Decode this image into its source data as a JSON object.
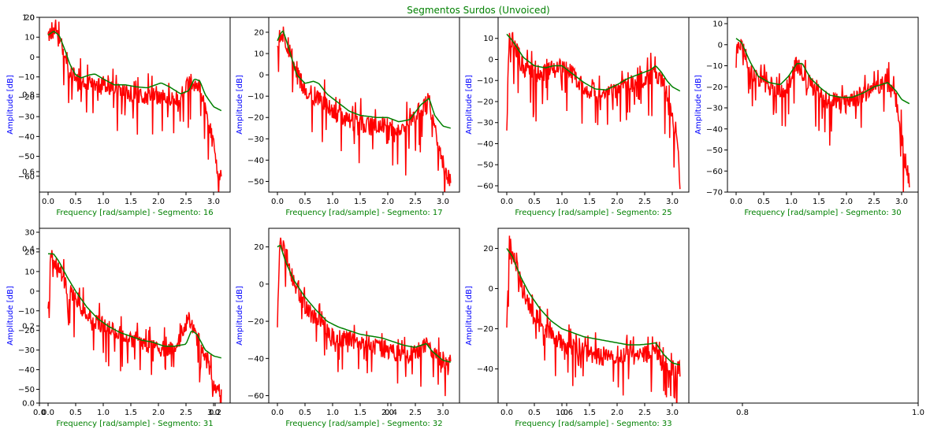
{
  "figure": {
    "title": "Segmentos Surdos (Unvoiced)",
    "title_color": "#008000",
    "background_axes": {
      "xticks": [
        "0.0",
        "0.2",
        "0.4",
        "0.6",
        "0.8",
        "1.0"
      ],
      "yticks": [
        "0.0",
        "0.2",
        "0.4",
        "0.6",
        "0.8",
        "1.0"
      ]
    }
  },
  "colors": {
    "spectrum": "#ff0000",
    "envelope": "#008000",
    "xlabel": "#008000",
    "ylabel": "#0000ff",
    "axes": "#000000"
  },
  "chart_data": [
    {
      "type": "line",
      "xlabel": "Frequency [rad/sample] - Segmento: 16",
      "ylabel": "Amplitude [dB]",
      "xlim": [
        -0.157,
        3.3
      ],
      "ylim": [
        -68,
        20
      ],
      "xticks": [
        0.0,
        0.5,
        1.0,
        1.5,
        2.0,
        2.5,
        3.0
      ],
      "yticks": [
        -60,
        -50,
        -40,
        -30,
        -20,
        -10,
        0,
        10,
        20
      ],
      "envelope": [
        [
          0.0,
          11
        ],
        [
          0.1,
          13
        ],
        [
          0.2,
          11
        ],
        [
          0.3,
          4
        ],
        [
          0.4,
          -4
        ],
        [
          0.5,
          -9
        ],
        [
          0.6,
          -10.5
        ],
        [
          0.75,
          -9
        ],
        [
          0.85,
          -8.5
        ],
        [
          1.0,
          -11
        ],
        [
          1.2,
          -14
        ],
        [
          1.4,
          -14
        ],
        [
          1.6,
          -15
        ],
        [
          1.8,
          -15.5
        ],
        [
          1.95,
          -14
        ],
        [
          2.05,
          -13
        ],
        [
          2.2,
          -15
        ],
        [
          2.4,
          -18.5
        ],
        [
          2.55,
          -17
        ],
        [
          2.65,
          -11
        ],
        [
          2.75,
          -12
        ],
        [
          2.85,
          -19
        ],
        [
          3.0,
          -25
        ],
        [
          3.14,
          -27
        ]
      ],
      "spectrum_trend": [
        [
          0.0,
          12
        ],
        [
          0.1,
          14
        ],
        [
          0.25,
          5
        ],
        [
          0.4,
          -8
        ],
        [
          0.6,
          -13
        ],
        [
          0.8,
          -14
        ],
        [
          1.0,
          -15
        ],
        [
          1.3,
          -18
        ],
        [
          1.6,
          -19
        ],
        [
          1.9,
          -20
        ],
        [
          2.1,
          -21
        ],
        [
          2.4,
          -20
        ],
        [
          2.6,
          -12
        ],
        [
          2.75,
          -16
        ],
        [
          2.9,
          -30
        ],
        [
          3.0,
          -45
        ],
        [
          3.1,
          -60
        ],
        [
          3.14,
          -57
        ]
      ]
    },
    {
      "type": "line",
      "xlabel": "Frequency [rad/sample] - Segmento: 17",
      "ylabel": "Amplitude [dB]",
      "xlim": [
        -0.157,
        3.3
      ],
      "ylim": [
        -55,
        27
      ],
      "xticks": [
        0.0,
        0.5,
        1.0,
        1.5,
        2.0,
        2.5,
        3.0
      ],
      "yticks": [
        -50,
        -40,
        -30,
        -20,
        -10,
        0,
        10,
        20
      ],
      "envelope": [
        [
          0.0,
          16
        ],
        [
          0.05,
          19
        ],
        [
          0.1,
          21
        ],
        [
          0.2,
          13
        ],
        [
          0.35,
          0
        ],
        [
          0.5,
          -4
        ],
        [
          0.65,
          -3
        ],
        [
          0.75,
          -4
        ],
        [
          0.9,
          -9
        ],
        [
          1.1,
          -13
        ],
        [
          1.3,
          -17
        ],
        [
          1.5,
          -19
        ],
        [
          1.8,
          -20
        ],
        [
          2.0,
          -20
        ],
        [
          2.2,
          -22
        ],
        [
          2.4,
          -21
        ],
        [
          2.6,
          -14
        ],
        [
          2.75,
          -11
        ],
        [
          2.85,
          -19
        ],
        [
          3.0,
          -24
        ],
        [
          3.14,
          -25
        ]
      ],
      "spectrum_trend": [
        [
          0.0,
          15
        ],
        [
          0.1,
          20
        ],
        [
          0.3,
          3
        ],
        [
          0.5,
          -7
        ],
        [
          0.8,
          -12
        ],
        [
          1.0,
          -17
        ],
        [
          1.3,
          -22
        ],
        [
          1.6,
          -24
        ],
        [
          2.0,
          -24
        ],
        [
          2.3,
          -26
        ],
        [
          2.6,
          -16
        ],
        [
          2.75,
          -13
        ],
        [
          2.9,
          -30
        ],
        [
          3.0,
          -42
        ],
        [
          3.14,
          -50
        ]
      ]
    },
    {
      "type": "line",
      "xlabel": "Frequency [rad/sample] - Segmento: 25",
      "ylabel": "Amplitude [dB]",
      "xlim": [
        -0.157,
        3.3
      ],
      "ylim": [
        -63,
        20
      ],
      "xticks": [
        0.0,
        0.5,
        1.0,
        1.5,
        2.0,
        2.5,
        3.0
      ],
      "yticks": [
        -60,
        -50,
        -40,
        -30,
        -20,
        -10,
        0,
        10
      ],
      "envelope": [
        [
          0.0,
          12
        ],
        [
          0.1,
          9
        ],
        [
          0.3,
          1
        ],
        [
          0.5,
          -3
        ],
        [
          0.7,
          -4
        ],
        [
          0.85,
          -3
        ],
        [
          1.0,
          -3
        ],
        [
          1.2,
          -7
        ],
        [
          1.4,
          -11
        ],
        [
          1.6,
          -14
        ],
        [
          1.8,
          -14.5
        ],
        [
          2.0,
          -12
        ],
        [
          2.2,
          -9
        ],
        [
          2.4,
          -7
        ],
        [
          2.6,
          -5
        ],
        [
          2.7,
          -3
        ],
        [
          2.8,
          -6
        ],
        [
          2.9,
          -10
        ],
        [
          3.0,
          -13
        ],
        [
          3.14,
          -15
        ]
      ],
      "spectrum_trend": [
        [
          0.0,
          -38
        ],
        [
          0.03,
          5
        ],
        [
          0.1,
          9
        ],
        [
          0.3,
          -4
        ],
        [
          0.6,
          -7
        ],
        [
          1.0,
          -3
        ],
        [
          1.3,
          -10
        ],
        [
          1.6,
          -17
        ],
        [
          2.0,
          -14
        ],
        [
          2.4,
          -10
        ],
        [
          2.7,
          -6
        ],
        [
          2.85,
          -12
        ],
        [
          3.0,
          -25
        ],
        [
          3.1,
          -45
        ],
        [
          3.14,
          -58
        ]
      ]
    },
    {
      "type": "line",
      "xlabel": "Frequency [rad/sample] - Segmento: 30",
      "ylabel": "Amplitude [dB]",
      "xlim": [
        -0.157,
        3.3
      ],
      "ylim": [
        -70,
        13
      ],
      "xticks": [
        0.0,
        0.5,
        1.0,
        1.5,
        2.0,
        2.5,
        3.0
      ],
      "yticks": [
        -70,
        -60,
        -50,
        -40,
        -30,
        -20,
        -10,
        0,
        10
      ],
      "envelope": [
        [
          0.0,
          3
        ],
        [
          0.1,
          1
        ],
        [
          0.25,
          -8
        ],
        [
          0.4,
          -15
        ],
        [
          0.6,
          -18
        ],
        [
          0.8,
          -19
        ],
        [
          0.95,
          -15
        ],
        [
          1.1,
          -9
        ],
        [
          1.2,
          -9
        ],
        [
          1.35,
          -16
        ],
        [
          1.55,
          -21
        ],
        [
          1.7,
          -24
        ],
        [
          1.9,
          -25
        ],
        [
          2.1,
          -25
        ],
        [
          2.3,
          -23
        ],
        [
          2.5,
          -20
        ],
        [
          2.75,
          -18
        ],
        [
          2.9,
          -22
        ],
        [
          3.0,
          -26
        ],
        [
          3.14,
          -28
        ]
      ],
      "spectrum_trend": [
        [
          0.0,
          -8
        ],
        [
          0.05,
          3
        ],
        [
          0.15,
          -3
        ],
        [
          0.3,
          -14
        ],
        [
          0.6,
          -20
        ],
        [
          0.9,
          -22
        ],
        [
          1.1,
          -9
        ],
        [
          1.3,
          -18
        ],
        [
          1.6,
          -26
        ],
        [
          2.0,
          -28
        ],
        [
          2.4,
          -22
        ],
        [
          2.7,
          -17
        ],
        [
          2.9,
          -26
        ],
        [
          3.0,
          -45
        ],
        [
          3.1,
          -60
        ],
        [
          3.14,
          -65
        ]
      ]
    },
    {
      "type": "line",
      "xlabel": "Frequency [rad/sample] - Segmento: 31",
      "ylabel": "Amplitude [dB]",
      "xlim": [
        -0.157,
        3.3
      ],
      "ylim": [
        -57,
        32
      ],
      "xticks": [
        0.0,
        0.5,
        1.0,
        1.5,
        2.0,
        2.5,
        3.0
      ],
      "yticks": [
        -50,
        -40,
        -30,
        -20,
        -10,
        0,
        10,
        20,
        30
      ],
      "envelope": [
        [
          0.0,
          19
        ],
        [
          0.1,
          19
        ],
        [
          0.2,
          15
        ],
        [
          0.35,
          7
        ],
        [
          0.5,
          0
        ],
        [
          0.7,
          -8
        ],
        [
          0.9,
          -14
        ],
        [
          1.1,
          -18
        ],
        [
          1.3,
          -21
        ],
        [
          1.5,
          -23
        ],
        [
          1.7,
          -25
        ],
        [
          1.9,
          -26
        ],
        [
          2.1,
          -28
        ],
        [
          2.3,
          -28
        ],
        [
          2.5,
          -27
        ],
        [
          2.6,
          -20
        ],
        [
          2.7,
          -22
        ],
        [
          2.85,
          -30
        ],
        [
          3.0,
          -33
        ],
        [
          3.14,
          -34
        ]
      ],
      "spectrum_trend": [
        [
          0.0,
          -8
        ],
        [
          0.05,
          20
        ],
        [
          0.15,
          12
        ],
        [
          0.3,
          4
        ],
        [
          0.5,
          -5
        ],
        [
          0.7,
          -12
        ],
        [
          1.0,
          -18
        ],
        [
          1.3,
          -22
        ],
        [
          1.6,
          -26
        ],
        [
          2.0,
          -30
        ],
        [
          2.3,
          -29
        ],
        [
          2.55,
          -14
        ],
        [
          2.7,
          -24
        ],
        [
          2.9,
          -35
        ],
        [
          3.0,
          -48
        ],
        [
          3.14,
          -52
        ]
      ]
    },
    {
      "type": "line",
      "xlabel": "Frequency [rad/sample] - Segmento: 32",
      "ylabel": "Amplitude [dB]",
      "xlim": [
        -0.157,
        3.3
      ],
      "ylim": [
        -64,
        30
      ],
      "xticks": [
        0.0,
        0.5,
        1.0,
        1.5,
        2.0,
        2.5,
        3.0
      ],
      "yticks": [
        -60,
        -40,
        -20,
        0,
        20
      ],
      "envelope": [
        [
          0.0,
          20
        ],
        [
          0.05,
          21
        ],
        [
          0.15,
          12
        ],
        [
          0.3,
          2
        ],
        [
          0.5,
          -7
        ],
        [
          0.7,
          -14
        ],
        [
          0.9,
          -20
        ],
        [
          1.1,
          -23
        ],
        [
          1.3,
          -25
        ],
        [
          1.5,
          -27
        ],
        [
          1.7,
          -28
        ],
        [
          1.9,
          -29
        ],
        [
          2.1,
          -31
        ],
        [
          2.3,
          -33
        ],
        [
          2.5,
          -34
        ],
        [
          2.7,
          -32
        ],
        [
          2.8,
          -36
        ],
        [
          3.0,
          -41
        ],
        [
          3.14,
          -42
        ]
      ],
      "spectrum_trend": [
        [
          0.0,
          -20
        ],
        [
          0.05,
          25
        ],
        [
          0.15,
          18
        ],
        [
          0.3,
          0
        ],
        [
          0.5,
          -12
        ],
        [
          0.8,
          -22
        ],
        [
          1.0,
          -28
        ],
        [
          1.3,
          -30
        ],
        [
          1.6,
          -32
        ],
        [
          2.0,
          -36
        ],
        [
          2.4,
          -38
        ],
        [
          2.7,
          -33
        ],
        [
          2.9,
          -40
        ],
        [
          3.14,
          -42
        ]
      ]
    },
    {
      "type": "line",
      "xlabel": "Frequency [rad/sample] - Segmento: 33",
      "ylabel": "Amplitude [dB]",
      "xlim": [
        -0.157,
        3.3
      ],
      "ylim": [
        -57,
        30
      ],
      "xticks": [
        0.0,
        0.5,
        1.0,
        1.5,
        2.0,
        2.5,
        3.0
      ],
      "yticks": [
        -40,
        -20,
        0,
        20
      ],
      "envelope": [
        [
          0.0,
          20
        ],
        [
          0.1,
          16
        ],
        [
          0.25,
          6
        ],
        [
          0.4,
          -2
        ],
        [
          0.6,
          -10
        ],
        [
          0.8,
          -16
        ],
        [
          1.0,
          -20
        ],
        [
          1.2,
          -22
        ],
        [
          1.4,
          -24
        ],
        [
          1.6,
          -25
        ],
        [
          1.8,
          -26
        ],
        [
          2.0,
          -27
        ],
        [
          2.2,
          -28
        ],
        [
          2.4,
          -28
        ],
        [
          2.6,
          -27.5
        ],
        [
          2.7,
          -27
        ],
        [
          2.85,
          -33
        ],
        [
          3.0,
          -37
        ],
        [
          3.14,
          -38
        ]
      ],
      "spectrum_trend": [
        [
          0.0,
          -18
        ],
        [
          0.05,
          25
        ],
        [
          0.15,
          14
        ],
        [
          0.3,
          -2
        ],
        [
          0.5,
          -12
        ],
        [
          0.7,
          -20
        ],
        [
          1.0,
          -28
        ],
        [
          1.3,
          -30
        ],
        [
          1.6,
          -34
        ],
        [
          2.0,
          -34
        ],
        [
          2.4,
          -34
        ],
        [
          2.7,
          -30
        ],
        [
          2.85,
          -40
        ],
        [
          3.14,
          -40
        ]
      ]
    }
  ]
}
